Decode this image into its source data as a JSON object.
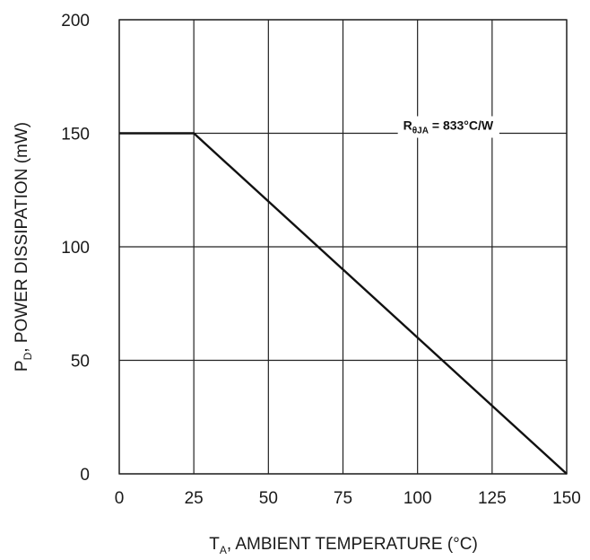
{
  "chart_data": {
    "type": "line",
    "xlabel": {
      "main": "T",
      "sub": "A",
      "rest": ", AMBIENT TEMPERATURE (°C)"
    },
    "ylabel": {
      "main": "P",
      "sub": "D",
      "rest": ", POWER DISSIPATION (mW)"
    },
    "xlim": [
      0,
      150
    ],
    "ylim": [
      0,
      200
    ],
    "x_ticks": [
      0,
      25,
      50,
      75,
      100,
      125,
      150
    ],
    "y_ticks": [
      0,
      50,
      100,
      150,
      200
    ],
    "grid": true,
    "series": [
      {
        "x": [
          0,
          25,
          150
        ],
        "y": [
          150,
          150,
          0
        ]
      }
    ],
    "annotation": {
      "main": "R",
      "sub": "θJA",
      "rest": " = 833°C/W",
      "x": 100,
      "y": 150
    },
    "colors": {
      "line": "#111111",
      "grid": "#222222",
      "background": "#ffffff"
    }
  }
}
